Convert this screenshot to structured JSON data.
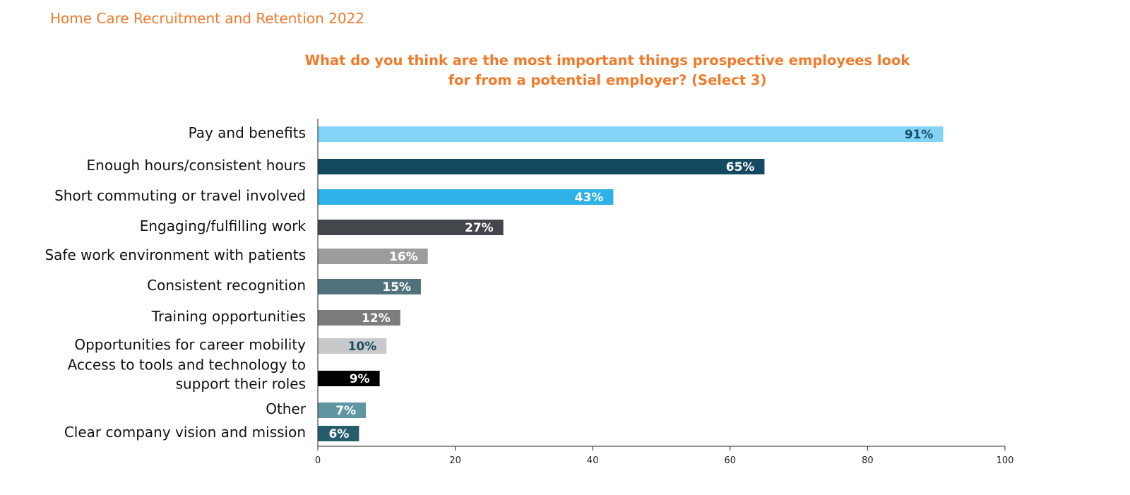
{
  "header": {
    "report_title": "Home Care Recruitment and Retention 2022"
  },
  "chart_data": {
    "type": "bar",
    "orientation": "horizontal",
    "title_lines": [
      "What do you think are the most important things prospective employees look",
      "for from a potential employer? (Select 3)"
    ],
    "categories": [
      [
        "Pay and benefits"
      ],
      [
        "Enough hours/consistent hours"
      ],
      [
        "Short commuting or travel involved"
      ],
      [
        "Engaging/fulfilling work"
      ],
      [
        "Safe work environment with patients"
      ],
      [
        "Consistent recognition"
      ],
      [
        "Training opportunities"
      ],
      [
        "Opportunities for career mobility"
      ],
      [
        "Access to tools and technology to",
        "support their roles"
      ],
      [
        "Other"
      ],
      [
        "Clear company vision and mission"
      ]
    ],
    "values": [
      91,
      65,
      43,
      27,
      16,
      15,
      12,
      10,
      9,
      7,
      6
    ],
    "value_labels": [
      "91%",
      "65%",
      "43%",
      "27%",
      "16%",
      "15%",
      "12%",
      "10%",
      "9%",
      "7%",
      "6%"
    ],
    "bar_colors": [
      "#82d3f5",
      "#134a62",
      "#2db1e6",
      "#43474b",
      "#9a9c9e",
      "#4f727c",
      "#7b7c7e",
      "#c8c9ca",
      "#000000",
      "#5f96a2",
      "#265d6b"
    ],
    "label_colors": [
      "#1b4a63",
      "#ffffff",
      "#ffffff",
      "#ffffff",
      "#ffffff",
      "#ffffff",
      "#ffffff",
      "#1b4a63",
      "#ffffff",
      "#ffffff",
      "#ffffff"
    ],
    "xlim": [
      0,
      100
    ],
    "xticks": [
      0,
      20,
      40,
      60,
      80,
      100
    ],
    "grid": false,
    "legend": false
  }
}
